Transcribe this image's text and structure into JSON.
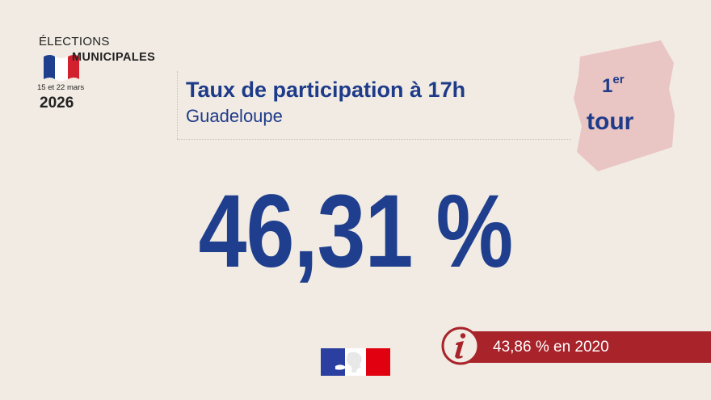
{
  "logo": {
    "line1": "ÉLECTIONS",
    "line2": "MUNICIPALES",
    "dates": "15 et 22 mars",
    "year": "2026"
  },
  "header": {
    "title": "Taux de participation à 17h",
    "subtitle": "Guadeloupe"
  },
  "round_badge": {
    "number": "1",
    "suffix": "er",
    "word": "tour"
  },
  "main": {
    "value": "46,31 %"
  },
  "info": {
    "icon": "info-icon",
    "text": "43,86 % en 2020"
  },
  "colors": {
    "background": "#f1ebe3",
    "primary_blue": "#1e3b8a",
    "accent_red": "#a8232a",
    "badge_pink": "#e9c5c3"
  }
}
